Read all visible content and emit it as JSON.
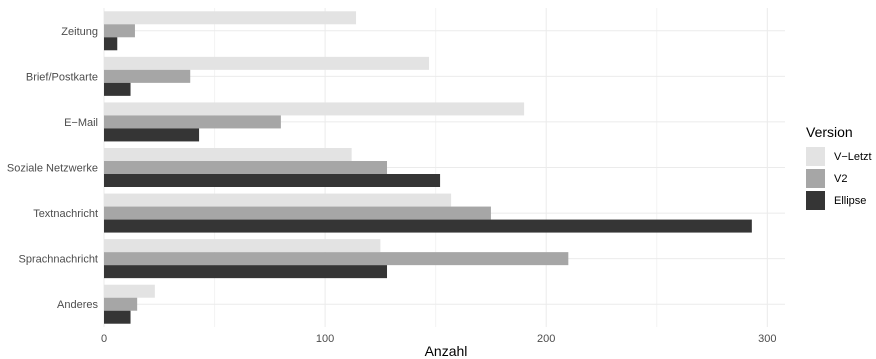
{
  "chart_data": {
    "type": "bar",
    "orientation": "horizontal",
    "categories": [
      "Zeitung",
      "Brief/Postkarte",
      "E−Mail",
      "Soziale Netzwerke",
      "Textnachricht",
      "Sprachnachricht",
      "Anderes"
    ],
    "series": [
      {
        "name": "V−Letzt",
        "color": "#e3e3e3",
        "values": [
          114,
          147,
          190,
          112,
          157,
          125,
          23
        ]
      },
      {
        "name": "V2",
        "color": "#a6a6a6",
        "values": [
          14,
          39,
          80,
          128,
          175,
          210,
          15
        ]
      },
      {
        "name": "Ellipse",
        "color": "#353535",
        "values": [
          6,
          12,
          43,
          152,
          293,
          128,
          12
        ]
      }
    ],
    "xlabel": "Anzahl",
    "ylabel": "",
    "xlim": [
      0,
      308
    ],
    "xticks": [
      0,
      100,
      200,
      300
    ],
    "grid": true,
    "legend": {
      "title": "Version",
      "position": "right"
    }
  }
}
